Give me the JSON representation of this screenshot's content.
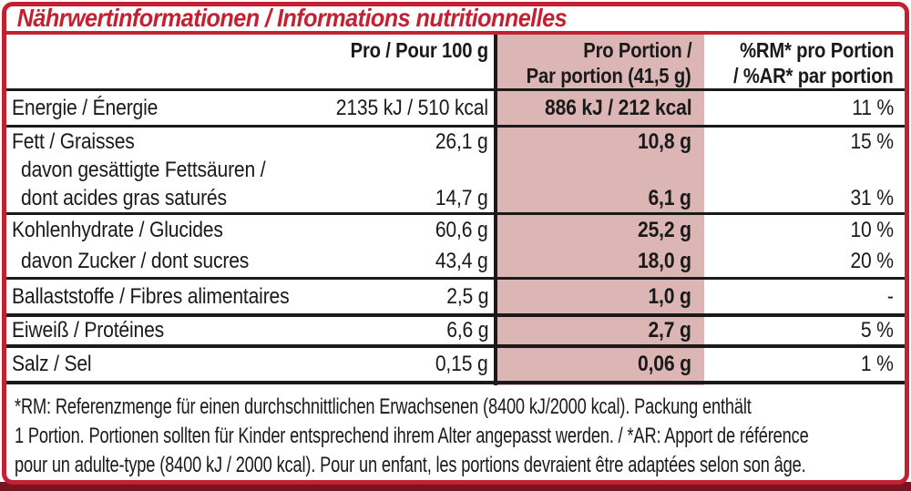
{
  "title": "Nährwertinformationen / Informations nutritionnelles",
  "table": {
    "col_headers": {
      "per100": "Pro / Pour 100 g",
      "portion_l1": "Pro Portion /",
      "portion_l2": "Par portion (41,5 g)",
      "rm_l1": "%RM* pro Portion",
      "rm_l2": "/ %AR* par portion"
    },
    "groups": [
      {
        "name": "energy",
        "lines": [
          {
            "label": "Energie / Énergie",
            "per100": "2135 kJ / 510 kcal",
            "portion": "886 kJ / 212 kcal",
            "rm": "11 %"
          }
        ]
      },
      {
        "name": "fat",
        "lines": [
          {
            "label": "Fett / Graisses",
            "per100": "26,1 g",
            "portion": "10,8 g",
            "rm": "15 %"
          },
          {
            "label": "davon gesättigte Fettsäuren /"
          },
          {
            "label": "dont acides gras saturés",
            "per100": "14,7 g",
            "portion": "6,1 g",
            "rm": "31 %"
          }
        ]
      },
      {
        "name": "carbohydrates",
        "lines": [
          {
            "label": "Kohlenhydrate / Glucides",
            "per100": "60,6 g",
            "portion": "25,2 g",
            "rm": "10 %"
          },
          {
            "label": "davon Zucker / dont sucres",
            "per100": "43,4 g",
            "portion": "18,0 g",
            "rm": "20 %"
          }
        ]
      },
      {
        "name": "fiber",
        "lines": [
          {
            "label": "Ballaststoffe / Fibres alimentaires",
            "per100": "2,5 g",
            "portion": "1,0 g",
            "rm": "-"
          }
        ]
      },
      {
        "name": "protein",
        "lines": [
          {
            "label": "Eiweiß / Protéines",
            "per100": "6,6 g",
            "portion": "2,7 g",
            "rm": "5 %"
          }
        ]
      },
      {
        "name": "salt",
        "lines": [
          {
            "label": "Salz / Sel",
            "per100": "0,15 g",
            "portion": "0,06 g",
            "rm": "1 %"
          }
        ]
      }
    ]
  },
  "footnote": {
    "lines": [
      "*RM: Referenzmenge für einen durchschnittlichen Erwachsenen (8400 kJ/2000 kcal). Packung enthält",
      "1 Portion. Portionen sollten für Kinder entsprechend ihrem Alter angepasst werden. / *AR: Apport de référence",
      "pour un adulte-type (8400 kJ / 2000 kcal). Pour un enfant, les portions devraient être adaptées selon son âge."
    ]
  },
  "colors": {
    "red": "#c32031",
    "pink": "#dcb5b5",
    "ink": "#1a1a1a",
    "maroon": "#77141f"
  }
}
